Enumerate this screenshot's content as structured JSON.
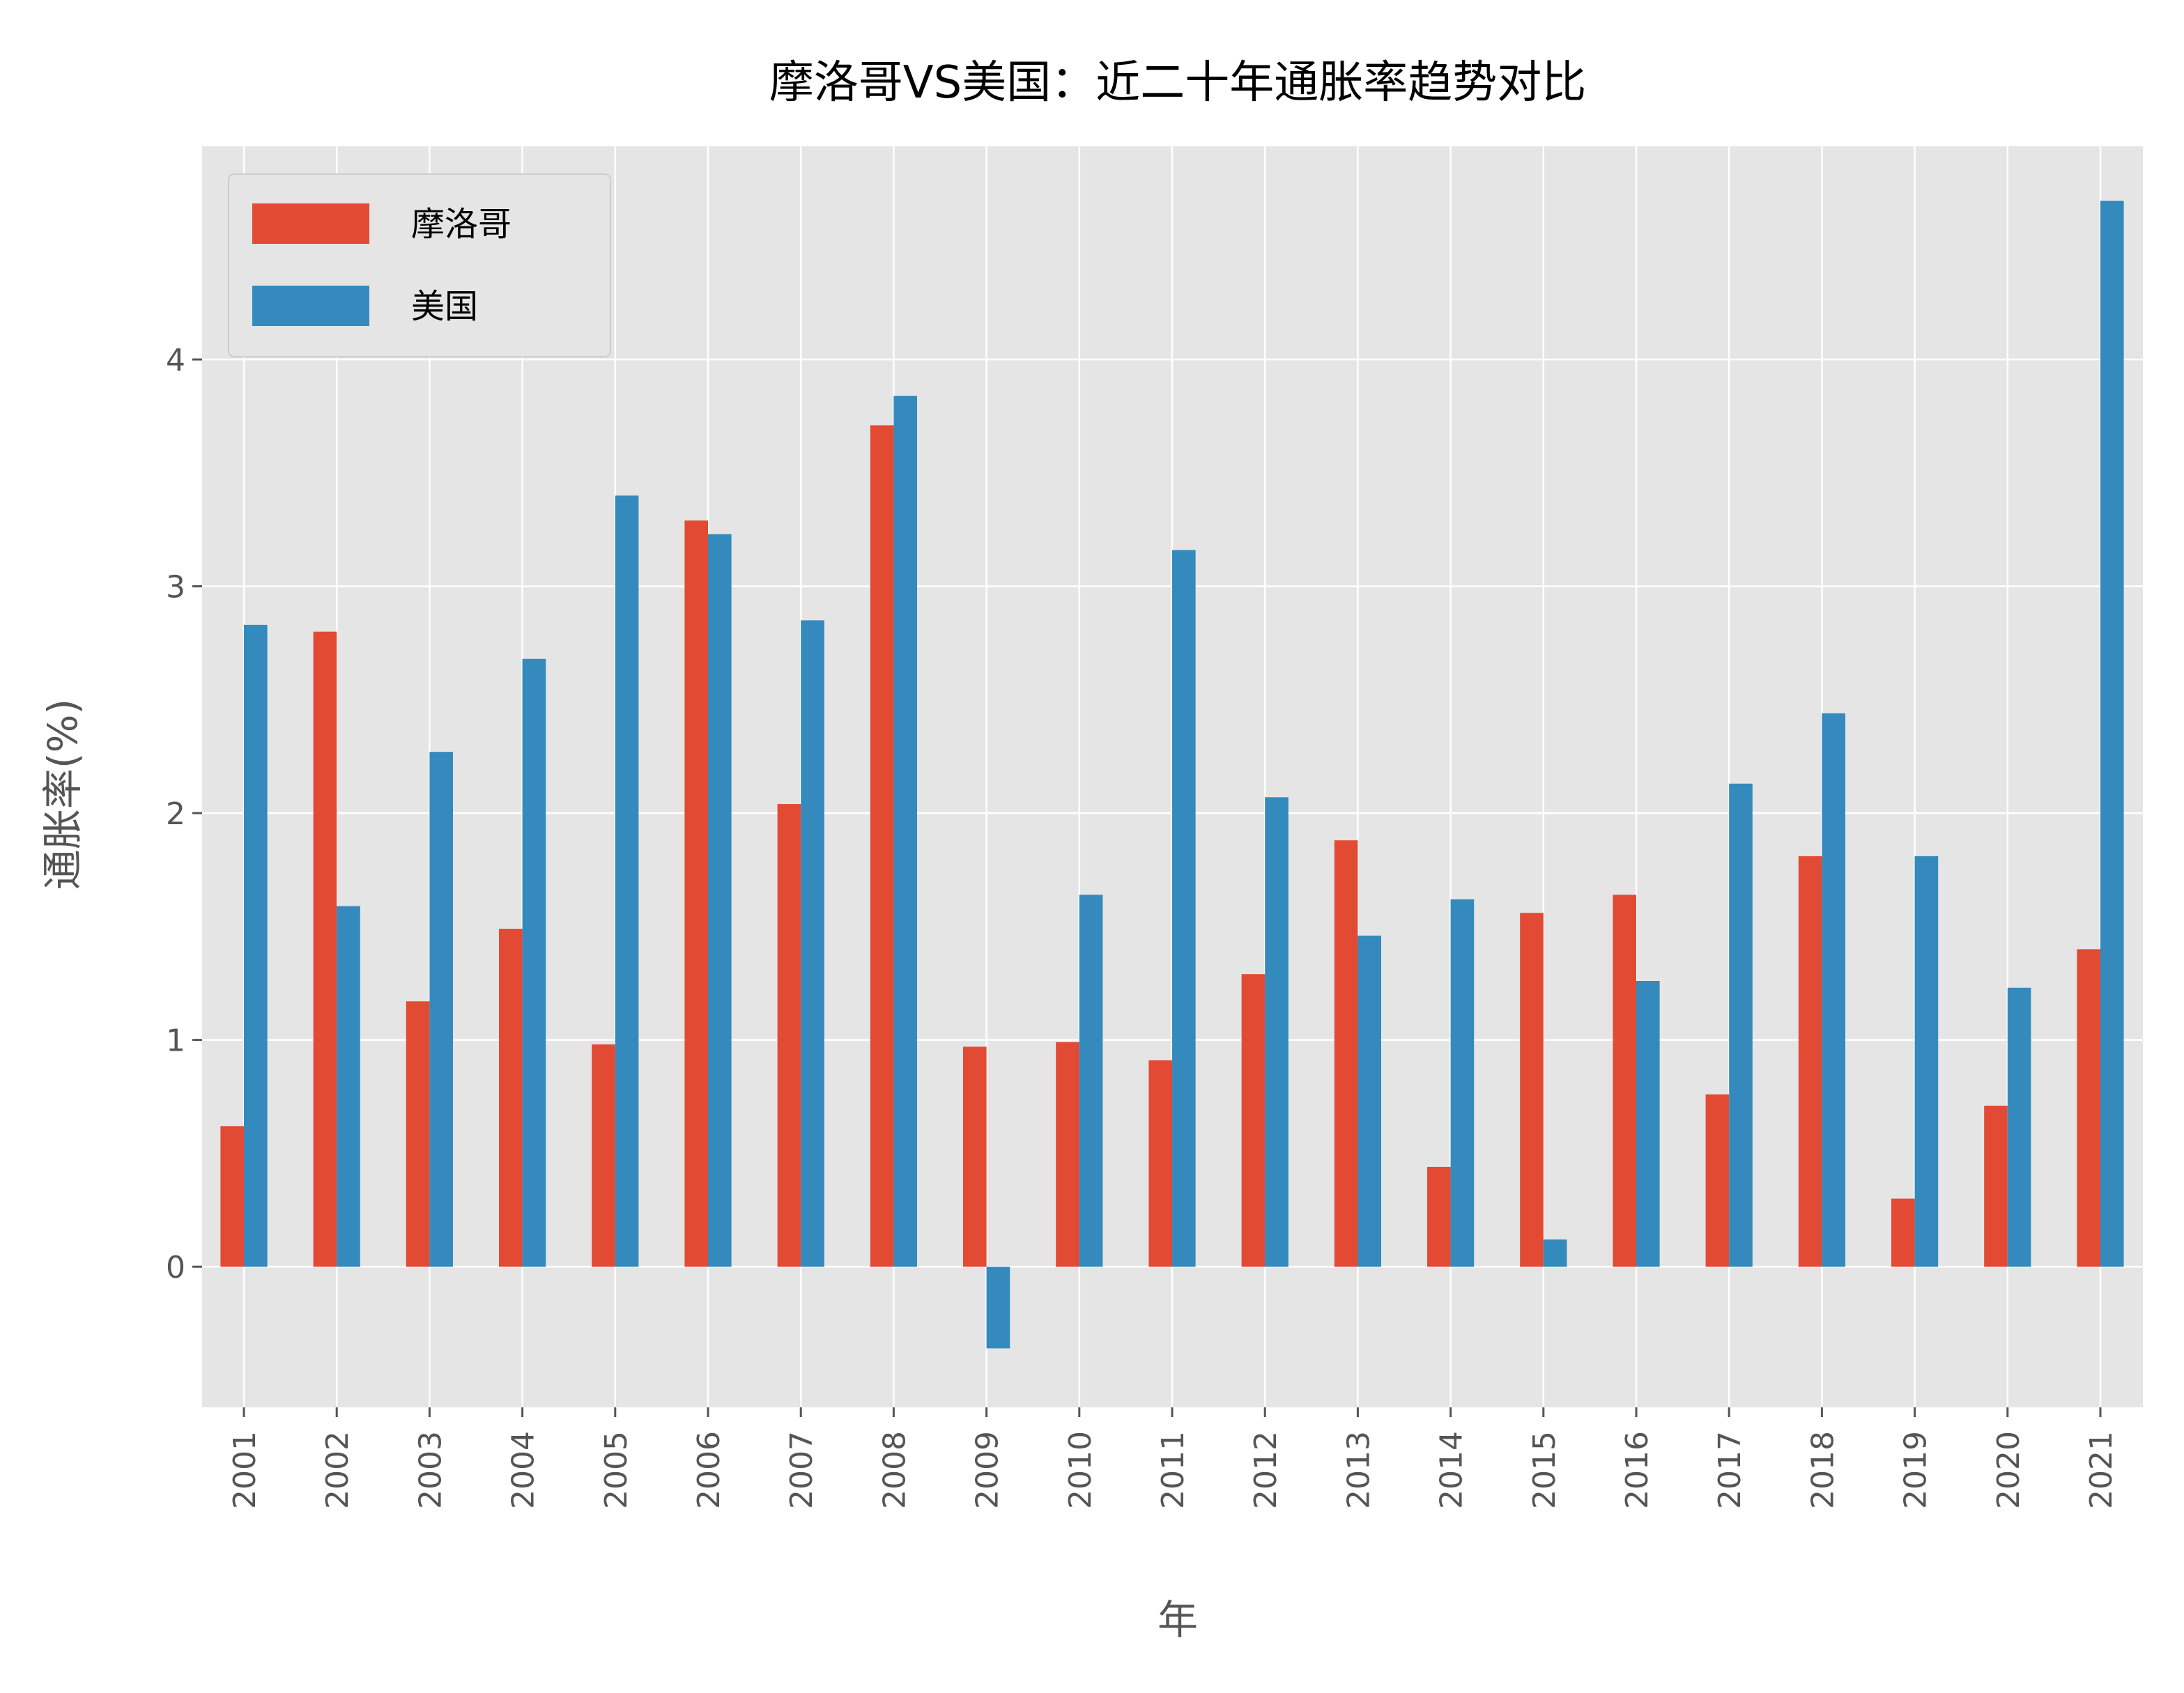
{
  "chart_data": {
    "type": "bar",
    "title": "摩洛哥VS美国：近二十年通胀率趋势对比",
    "xlabel": "年",
    "ylabel": "通胀率(%)",
    "categories": [
      "2001",
      "2002",
      "2003",
      "2004",
      "2005",
      "2006",
      "2007",
      "2008",
      "2009",
      "2010",
      "2011",
      "2012",
      "2013",
      "2014",
      "2015",
      "2016",
      "2017",
      "2018",
      "2019",
      "2020",
      "2021"
    ],
    "series": [
      {
        "name": "摩洛哥",
        "color": "#E24A33",
        "values": [
          0.62,
          2.8,
          1.17,
          1.49,
          0.98,
          3.29,
          2.04,
          3.71,
          0.97,
          0.99,
          0.91,
          1.29,
          1.88,
          0.44,
          1.56,
          1.64,
          0.76,
          1.81,
          0.3,
          0.71,
          1.4
        ]
      },
      {
        "name": "美国",
        "color": "#348ABD",
        "values": [
          2.83,
          1.59,
          2.27,
          2.68,
          3.4,
          3.23,
          2.85,
          3.84,
          -0.36,
          1.64,
          3.16,
          2.07,
          1.46,
          1.62,
          0.12,
          1.26,
          2.13,
          2.44,
          1.81,
          1.23,
          4.7
        ]
      }
    ],
    "yticks": [
      0,
      1,
      2,
      3,
      4
    ],
    "ylim": [
      -0.62,
      4.94
    ],
    "grid": true,
    "legend_position": "top-left",
    "plot_background": "#E5E5E5",
    "grid_color": "#FFFFFF"
  }
}
